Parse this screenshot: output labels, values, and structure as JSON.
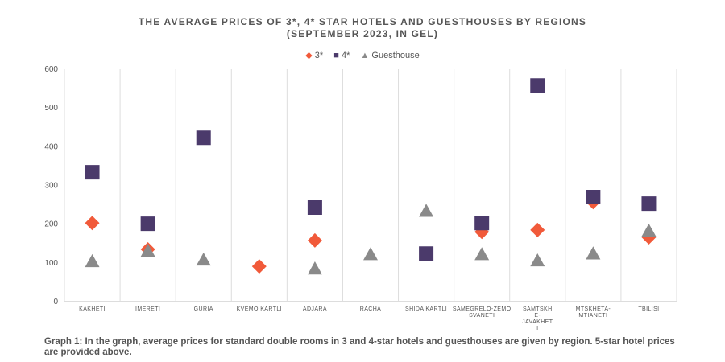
{
  "chart_data": {
    "type": "scatter",
    "title": "THE AVERAGE PRICES OF 3*, 4* STAR HOTELS AND GUESTHOUSES BY REGIONS\n(SEPTEMBER 2023, IN GEL)",
    "categories": [
      "KAKHETI",
      "IMERETI",
      "GURIA",
      "KVEMO KARTLI",
      "ADJARA",
      "RACHA",
      "SHIDA KARTLI",
      "SAMEGRELO-ZEMO\nSVANETI",
      "SAMTSKH\nE-\nJAVAKHET\nI",
      "MTSKHETA-\nMTIANETI",
      "TBILISI"
    ],
    "ylim": [
      0,
      600
    ],
    "yticks": [
      0,
      100,
      200,
      300,
      400,
      500,
      600
    ],
    "legend_position": "top-center",
    "series": [
      {
        "name": "3*",
        "marker": "diamond",
        "color": "#f15a3a",
        "values": [
          203,
          135,
          null,
          91,
          158,
          null,
          null,
          180,
          185,
          257,
          166
        ]
      },
      {
        "name": "4*",
        "marker": "square",
        "color": "#4b3a6b",
        "values": [
          334,
          201,
          423,
          null,
          243,
          null,
          124,
          203,
          558,
          270,
          253
        ]
      },
      {
        "name": "Guesthouse",
        "marker": "triangle",
        "color": "#8a8a8a",
        "values": [
          104,
          131,
          108,
          null,
          85,
          122,
          234,
          122,
          106,
          124,
          183
        ]
      }
    ]
  },
  "caption": "Graph 1: In the graph, average prices for standard double rooms in 3 and 4-star hotels and guesthouses are given by region. 5-star hotel prices are provided above."
}
